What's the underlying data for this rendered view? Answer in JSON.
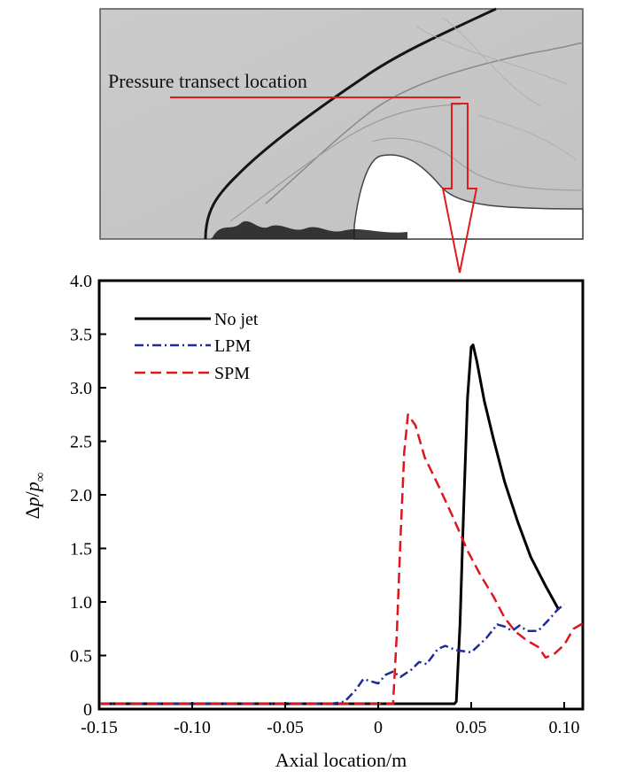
{
  "schlieren_panel": {
    "annotation": "Pressure transect location"
  },
  "chart_data": {
    "type": "line",
    "xlabel": "Axial location/m",
    "ylabel_parts": {
      "delta": "Δ",
      "p": "p",
      "slash": "/",
      "pinf": "p",
      "sub": "∞"
    },
    "xlim": [
      -0.15,
      0.11
    ],
    "ylim": [
      0,
      4.0
    ],
    "xticks": [
      -0.15,
      -0.1,
      -0.05,
      0,
      0.05,
      0.1
    ],
    "xtick_labels": [
      "-0.15",
      "-0.10",
      "-0.05",
      "0",
      "0.05",
      "0.10"
    ],
    "yticks": [
      0,
      0.5,
      1.0,
      1.5,
      2.0,
      2.5,
      3.0,
      3.5,
      4.0
    ],
    "ytick_labels": [
      "0",
      "0.5",
      "1.0",
      "1.5",
      "2.0",
      "2.5",
      "3.0",
      "3.5",
      "4.0"
    ],
    "legend_position": "top-left",
    "series": [
      {
        "name": "No jet",
        "color": "#000000",
        "dash": "solid",
        "x": [
          -0.15,
          -0.1,
          -0.05,
          0.0,
          0.02,
          0.04,
          0.041,
          0.042,
          0.044,
          0.046,
          0.048,
          0.05,
          0.051,
          0.053,
          0.057,
          0.062,
          0.068,
          0.075,
          0.082,
          0.09,
          0.097
        ],
        "y": [
          0.05,
          0.05,
          0.05,
          0.05,
          0.05,
          0.05,
          0.05,
          0.07,
          0.8,
          1.9,
          2.9,
          3.38,
          3.4,
          3.25,
          2.88,
          2.52,
          2.12,
          1.75,
          1.42,
          1.15,
          0.93
        ]
      },
      {
        "name": "LPM",
        "color": "#1f2a9c",
        "dash": "dashdot",
        "x": [
          -0.15,
          -0.1,
          -0.05,
          -0.025,
          -0.018,
          -0.012,
          -0.008,
          0.0,
          0.004,
          0.008,
          0.012,
          0.018,
          0.022,
          0.026,
          0.032,
          0.036,
          0.042,
          0.05,
          0.058,
          0.064,
          0.068,
          0.072,
          0.076,
          0.08,
          0.086,
          0.092,
          0.096,
          0.1
        ],
        "y": [
          0.05,
          0.05,
          0.05,
          0.05,
          0.07,
          0.18,
          0.28,
          0.24,
          0.32,
          0.35,
          0.3,
          0.37,
          0.44,
          0.42,
          0.56,
          0.59,
          0.55,
          0.53,
          0.66,
          0.79,
          0.77,
          0.73,
          0.78,
          0.73,
          0.73,
          0.84,
          0.92,
          0.98
        ]
      },
      {
        "name": "SPM",
        "color": "#e0141b",
        "dash": "dashed",
        "x": [
          -0.15,
          -0.1,
          -0.05,
          0.0,
          0.008,
          0.01,
          0.012,
          0.014,
          0.016,
          0.02,
          0.025,
          0.032,
          0.04,
          0.048,
          0.055,
          0.062,
          0.068,
          0.074,
          0.08,
          0.086,
          0.09,
          0.095,
          0.1,
          0.105,
          0.11
        ],
        "y": [
          0.05,
          0.05,
          0.05,
          0.05,
          0.05,
          0.7,
          1.6,
          2.4,
          2.75,
          2.65,
          2.35,
          2.1,
          1.8,
          1.48,
          1.25,
          1.05,
          0.85,
          0.72,
          0.64,
          0.58,
          0.48,
          0.52,
          0.6,
          0.75,
          0.8
        ]
      }
    ]
  }
}
